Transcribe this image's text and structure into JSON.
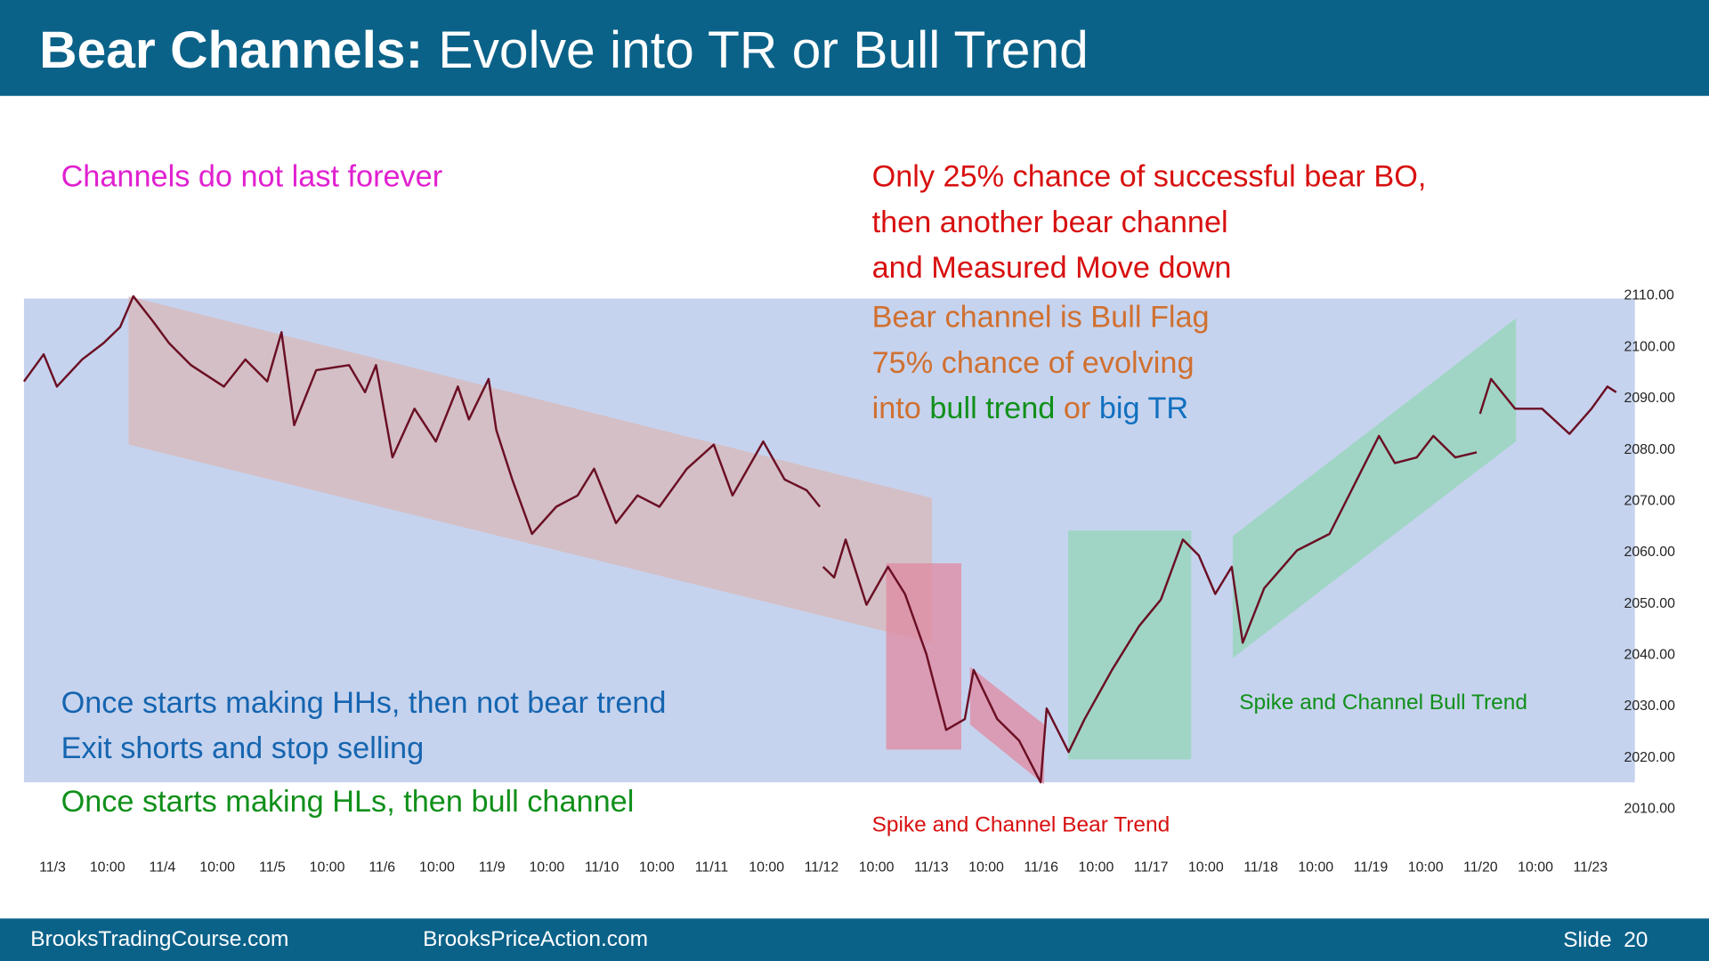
{
  "header": {
    "title_bold": "Bear Channels:",
    "title_rest": "Evolve into TR or Bull Trend"
  },
  "annotations": [
    {
      "text": "Channels do not last forever",
      "color": "#e020d0"
    },
    {
      "text": "Only 25% chance of successful bear BO,",
      "color": "#d81010"
    },
    {
      "text": "then another bear channel",
      "color": "#d81010"
    },
    {
      "text": "and Measured Move down",
      "color": "#d81010"
    },
    {
      "text": "Bear channel is Bull Flag",
      "color": "#d07030"
    },
    {
      "text": "75% chance of evolving",
      "color": "#d07030"
    },
    {
      "parts": [
        {
          "text": "into ",
          "color": "#d07030"
        },
        {
          "text": "bull trend",
          "color": "#10901a"
        },
        {
          "text": " or ",
          "color": "#d07030"
        },
        {
          "text": "big TR",
          "color": "#1070c0"
        }
      ]
    },
    {
      "text": "Once starts making HHs, then not bear trend",
      "color": "#1565b0"
    },
    {
      "text": "Exit shorts and stop selling",
      "color": "#1565b0"
    },
    {
      "text": "Once starts making HLs, then bull channel",
      "color": "#10901a"
    },
    {
      "text": "Spike and Channel Bear Trend",
      "color": "#d81010"
    },
    {
      "text": "Spike and Channel Bull Trend",
      "color": "#10901a"
    }
  ],
  "chart_data": {
    "type": "line",
    "color": "#6b0f24",
    "x": [
      -0.52,
      -0.16,
      0.08,
      0.54,
      0.93,
      1.23,
      1.47,
      1.83,
      2.12,
      2.52,
      3.12,
      3.51,
      3.91,
      4.17,
      4.4,
      4.8,
      5.4,
      5.69,
      5.89,
      6.19,
      6.59,
      6.98,
      7.38,
      7.58,
      7.94,
      8.08,
      8.37,
      8.73,
      9.17,
      9.56,
      9.86,
      10.26,
      10.65,
      11.05,
      11.55,
      12.04,
      12.38,
      12.94,
      13.33,
      13.73,
      13.97,
      14.0,
      14.03,
      14.23,
      14.44,
      14.82,
      15.21,
      15.52,
      15.91,
      16.27,
      16.61,
      16.77,
      17.2,
      17.6,
      17.99,
      18.1,
      18.5,
      18.79,
      19.29,
      19.78,
      20.18,
      20.58,
      20.87,
      21.17,
      21.47,
      21.67,
      22.06,
      22.66,
      23.25,
      23.65,
      24.15,
      24.44,
      24.84,
      25.14,
      25.54,
      25.93,
      25.96,
      25.99,
      26.19,
      26.63,
      27.12,
      27.62,
      28.02,
      28.31,
      28.47
    ],
    "values": [
      2093.2,
      2098.5,
      2092.2,
      2097.5,
      2100.7,
      2103.8,
      2109.8,
      2104.9,
      2100.7,
      2096.4,
      2092.2,
      2097.5,
      2093.2,
      2102.8,
      2084.7,
      2095.4,
      2096.4,
      2091.1,
      2096.4,
      2078.4,
      2087.9,
      2081.5,
      2092.2,
      2085.8,
      2093.7,
      2083.7,
      2074.1,
      2063.5,
      2068.8,
      2071.0,
      2076.2,
      2065.6,
      2071.0,
      2068.8,
      2076.2,
      2080.9,
      2071.0,
      2081.5,
      2074.1,
      2072.0,
      2068.8,
      null,
      2057.1,
      2055.0,
      2062.4,
      2049.7,
      2057.1,
      2051.8,
      2040.1,
      2025.3,
      2027.4,
      2037.0,
      2027.4,
      2023.2,
      2015.1,
      2029.5,
      2021.0,
      2027.4,
      2037.0,
      2045.5,
      2050.7,
      2062.4,
      2059.3,
      2051.8,
      2057.1,
      2042.3,
      2052.9,
      2060.3,
      2063.5,
      2072.0,
      2082.6,
      2077.3,
      2078.4,
      2082.6,
      2078.4,
      2079.4,
      null,
      2086.9,
      2093.7,
      2087.9,
      2087.9,
      2083.0,
      2087.9,
      2092.2,
      2091.1
    ],
    "xlim": [
      -0.52,
      28.8
    ],
    "ylim": [
      2005,
      2115
    ],
    "xticks": [
      {
        "value": 0,
        "label": "11/3"
      },
      {
        "value": 1,
        "label": "10:00"
      },
      {
        "value": 2,
        "label": "11/4"
      },
      {
        "value": 3,
        "label": "10:00"
      },
      {
        "value": 4,
        "label": "11/5"
      },
      {
        "value": 5,
        "label": "10:00"
      },
      {
        "value": 6,
        "label": "11/6"
      },
      {
        "value": 7,
        "label": "10:00"
      },
      {
        "value": 8,
        "label": "11/9"
      },
      {
        "value": 9,
        "label": "10:00"
      },
      {
        "value": 10,
        "label": "11/10"
      },
      {
        "value": 11,
        "label": "10:00"
      },
      {
        "value": 12,
        "label": "11/11"
      },
      {
        "value": 13,
        "label": "10:00"
      },
      {
        "value": 14,
        "label": "11/12"
      },
      {
        "value": 15,
        "label": "10:00"
      },
      {
        "value": 16,
        "label": "11/13"
      },
      {
        "value": 17,
        "label": "10:00"
      },
      {
        "value": 18,
        "label": "11/16"
      },
      {
        "value": 19,
        "label": "10:00"
      },
      {
        "value": 20,
        "label": "11/17"
      },
      {
        "value": 21,
        "label": "10:00"
      },
      {
        "value": 22,
        "label": "11/18"
      },
      {
        "value": 23,
        "label": "10:00"
      },
      {
        "value": 24,
        "label": "11/19"
      },
      {
        "value": 25,
        "label": "10:00"
      },
      {
        "value": 26,
        "label": "11/20"
      },
      {
        "value": 27,
        "label": "10:00"
      },
      {
        "value": 28,
        "label": "11/23"
      }
    ],
    "yticks": [
      {
        "value": 2110,
        "label": "2110.00"
      },
      {
        "value": 2100,
        "label": "2100.00"
      },
      {
        "value": 2090,
        "label": "2090.00"
      },
      {
        "value": 2080,
        "label": "2080.00"
      },
      {
        "value": 2070,
        "label": "2070.00"
      },
      {
        "value": 2060,
        "label": "2060.00"
      },
      {
        "value": 2050,
        "label": "2050.00"
      },
      {
        "value": 2040,
        "label": "2040.00"
      },
      {
        "value": 2030,
        "label": "2030.00"
      },
      {
        "value": 2020,
        "label": "2020.00"
      },
      {
        "value": 2010,
        "label": "2010.00"
      }
    ]
  },
  "footer": {
    "left": "BrooksTradingCourse.com",
    "middle": "BrooksPriceAction.com",
    "slide": "Slide  20"
  }
}
